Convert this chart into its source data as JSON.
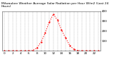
{
  "title": "Milwaukee Weather Average Solar Radiation per Hour W/m2 (Last 24 Hours)",
  "hours": [
    0,
    1,
    2,
    3,
    4,
    5,
    6,
    7,
    8,
    9,
    10,
    11,
    12,
    13,
    14,
    15,
    16,
    17,
    18,
    19,
    20,
    21,
    22,
    23
  ],
  "values": [
    0,
    0,
    0,
    0,
    0,
    0,
    0,
    5,
    30,
    90,
    180,
    290,
    370,
    310,
    210,
    130,
    55,
    15,
    2,
    0,
    0,
    0,
    0,
    0
  ],
  "line_color": "#ff0000",
  "bg_color": "#ffffff",
  "grid_color": "#888888",
  "ylim": [
    0,
    400
  ],
  "yticks": [
    100,
    200,
    300,
    400
  ],
  "xticks": [
    0,
    1,
    2,
    3,
    4,
    5,
    6,
    7,
    8,
    9,
    10,
    11,
    12,
    13,
    14,
    15,
    16,
    17,
    18,
    19,
    20,
    21,
    22,
    23
  ],
  "title_fontsize": 3.2,
  "label_fontsize": 3.0
}
